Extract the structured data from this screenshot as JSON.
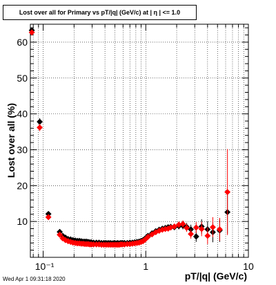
{
  "chart_data": {
    "type": "scatter",
    "title": "Lost over all for Primary vs pT/|q| (GeV/c) at |  η | <= 1.0",
    "xlabel": "pT/|q| (GeV/c)",
    "ylabel": "Lost over all (%)",
    "xscale": "log",
    "xlim": [
      0.075,
      10
    ],
    "ylim": [
      0,
      65
    ],
    "x_tick_labels": [
      "10⁻¹",
      "1",
      "10"
    ],
    "y_tick_labels": [
      "10",
      "20",
      "30",
      "40",
      "50",
      "60"
    ],
    "grid": true,
    "series": [
      {
        "color": "#000000",
        "x": [
          0.0775,
          0.0925,
          0.1125,
          0.145,
          0.155,
          0.165,
          0.175,
          0.185,
          0.195,
          0.205,
          0.215,
          0.225,
          0.235,
          0.245,
          0.255,
          0.265,
          0.275,
          0.285,
          0.295,
          0.31,
          0.33,
          0.35,
          0.37,
          0.39,
          0.41,
          0.43,
          0.45,
          0.47,
          0.49,
          0.51,
          0.53,
          0.55,
          0.57,
          0.59,
          0.62,
          0.66,
          0.7,
          0.74,
          0.78,
          0.82,
          0.86,
          0.9,
          0.94,
          0.98,
          1.05,
          1.15,
          1.25,
          1.35,
          1.45,
          1.55,
          1.65,
          1.75,
          1.9,
          2.1,
          2.3,
          2.5,
          2.75,
          3.1,
          3.5,
          4.0,
          4.5,
          5.25,
          6.25
        ],
        "y": [
          63.3,
          37.8,
          12.1,
          7.1,
          6.0,
          5.5,
          5.1,
          5.0,
          4.8,
          4.7,
          4.6,
          4.6,
          4.5,
          4.4,
          4.4,
          4.4,
          4.3,
          4.2,
          4.2,
          4.1,
          4.1,
          4.1,
          4.0,
          4.0,
          4.0,
          4.0,
          4.0,
          3.9,
          4.0,
          3.9,
          4.0,
          3.9,
          4.0,
          4.0,
          4.0,
          4.0,
          4.1,
          4.1,
          4.2,
          4.3,
          4.4,
          4.6,
          4.8,
          5.2,
          6.0,
          6.7,
          7.3,
          7.7,
          8.0,
          8.2,
          8.4,
          8.5,
          8.4,
          8.7,
          8.8,
          8.5,
          7.8,
          5.8,
          8.6,
          7.8,
          7.0,
          7.5,
          12.6
        ],
        "yerr": [
          0.6,
          1.0,
          0.6,
          0.3,
          0.25,
          0.2,
          0.2,
          0.2,
          0.2,
          0.2,
          0.2,
          0.2,
          0.2,
          0.2,
          0.2,
          0.2,
          0.2,
          0.2,
          0.2,
          0.2,
          0.2,
          0.2,
          0.2,
          0.2,
          0.2,
          0.2,
          0.2,
          0.2,
          0.2,
          0.2,
          0.2,
          0.2,
          0.2,
          0.2,
          0.2,
          0.2,
          0.3,
          0.3,
          0.3,
          0.3,
          0.4,
          0.4,
          0.4,
          0.5,
          0.5,
          0.5,
          0.5,
          0.6,
          0.6,
          0.6,
          0.7,
          0.7,
          0.8,
          0.9,
          1.0,
          1.1,
          1.3,
          1.5,
          2.0,
          2.3,
          2.8,
          3.2,
          6.0
        ]
      },
      {
        "color": "#ff0000",
        "x": [
          0.0775,
          0.0925,
          0.1125,
          0.145,
          0.155,
          0.165,
          0.175,
          0.185,
          0.195,
          0.205,
          0.215,
          0.225,
          0.235,
          0.245,
          0.255,
          0.265,
          0.275,
          0.285,
          0.295,
          0.31,
          0.33,
          0.35,
          0.37,
          0.39,
          0.41,
          0.43,
          0.45,
          0.47,
          0.49,
          0.51,
          0.53,
          0.55,
          0.57,
          0.59,
          0.62,
          0.66,
          0.7,
          0.74,
          0.78,
          0.82,
          0.86,
          0.9,
          0.94,
          0.98,
          1.05,
          1.15,
          1.25,
          1.35,
          1.45,
          1.55,
          1.65,
          1.75,
          1.9,
          2.1,
          2.3,
          2.5,
          2.75,
          3.1,
          3.5,
          4.0,
          4.5,
          5.25,
          6.25
        ],
        "y": [
          62.7,
          36.2,
          11.2,
          6.3,
          5.3,
          4.8,
          4.5,
          4.3,
          4.1,
          4.0,
          3.9,
          3.9,
          3.8,
          3.8,
          3.7,
          3.7,
          3.7,
          3.6,
          3.6,
          3.6,
          3.6,
          3.6,
          3.5,
          3.5,
          3.5,
          3.5,
          3.5,
          3.5,
          3.5,
          3.5,
          3.5,
          3.5,
          3.6,
          3.6,
          3.6,
          3.7,
          3.7,
          3.8,
          3.9,
          4.0,
          4.1,
          4.3,
          4.5,
          4.9,
          5.7,
          6.4,
          7.0,
          7.4,
          7.7,
          7.9,
          8.0,
          8.3,
          8.6,
          9.1,
          9.3,
          8.2,
          6.5,
          8.3,
          7.9,
          6.0,
          8.4,
          7.8,
          18.2
        ],
        "yerr": [
          0.6,
          1.0,
          0.6,
          0.3,
          0.25,
          0.2,
          0.2,
          0.2,
          0.2,
          0.2,
          0.2,
          0.2,
          0.2,
          0.2,
          0.2,
          0.2,
          0.2,
          0.2,
          0.2,
          0.2,
          0.2,
          0.2,
          0.2,
          0.2,
          0.2,
          0.2,
          0.2,
          0.2,
          0.2,
          0.2,
          0.2,
          0.2,
          0.2,
          0.2,
          0.2,
          0.2,
          0.3,
          0.3,
          0.3,
          0.3,
          0.4,
          0.4,
          0.4,
          0.5,
          0.5,
          0.5,
          0.5,
          0.6,
          0.6,
          0.6,
          0.7,
          0.7,
          0.8,
          0.9,
          1.0,
          1.1,
          1.3,
          1.5,
          2.0,
          2.3,
          2.8,
          3.2,
          12.0
        ]
      }
    ]
  },
  "footer": {
    "timestamp": "Wed Apr  1 09:31:18 2020"
  }
}
